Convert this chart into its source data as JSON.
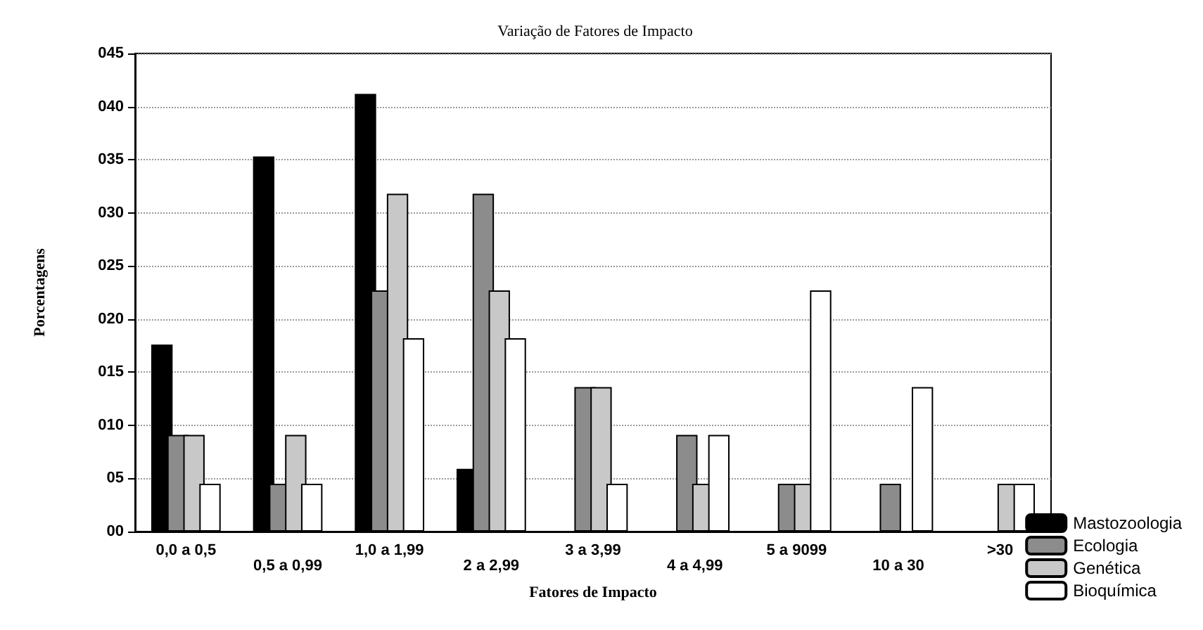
{
  "chart_data": {
    "type": "bar",
    "title": "Variação de Fatores de Impacto",
    "xlabel": "Fatores de Impacto",
    "ylabel": "Porcentagens",
    "categories": [
      "0,0 a 0,5",
      "0,5 a 0,99",
      "1,0 a 1,99",
      "2 a 2,99",
      "3 a 3,99",
      "4 a 4,99",
      "5 a 9099",
      "10 a 30",
      ">30"
    ],
    "series": [
      {
        "name": "Mastozoologia",
        "color": "#000000",
        "values": [
          17.6,
          35.3,
          41.2,
          5.9,
          0,
          0,
          0,
          0,
          0
        ]
      },
      {
        "name": "Ecologia",
        "color": "#8c8c8c",
        "values": [
          9.1,
          4.5,
          22.7,
          31.8,
          13.6,
          9.1,
          4.5,
          4.5,
          0
        ]
      },
      {
        "name": "Genética",
        "color": "#c8c8c8",
        "values": [
          9.1,
          9.1,
          31.8,
          22.7,
          13.6,
          4.5,
          4.5,
          0,
          4.5
        ]
      },
      {
        "name": "Bioquímica",
        "color": "#ffffff",
        "values": [
          4.5,
          4.5,
          18.2,
          18.2,
          4.5,
          9.1,
          22.7,
          13.6,
          4.5
        ]
      }
    ],
    "ylim": [
      0,
      45
    ],
    "yticks": [
      {
        "value": 0,
        "label": "00"
      },
      {
        "value": 5,
        "label": "05"
      },
      {
        "value": 10,
        "label": "010"
      },
      {
        "value": 15,
        "label": "015"
      },
      {
        "value": 20,
        "label": "020"
      },
      {
        "value": 25,
        "label": "025"
      },
      {
        "value": 30,
        "label": "030"
      },
      {
        "value": 35,
        "label": "035"
      },
      {
        "value": 40,
        "label": "040"
      },
      {
        "value": 45,
        "label": "045"
      }
    ],
    "grid": "y",
    "legend": "bottom right"
  }
}
